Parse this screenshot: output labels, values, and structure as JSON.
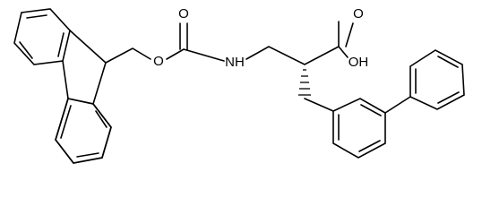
{
  "atoms": [
    {
      "label": "O"
    },
    {
      "label": "O"
    },
    {
      "label": "NH"
    },
    {
      "label": "O"
    },
    {
      "label": "OH"
    }
  ]
}
